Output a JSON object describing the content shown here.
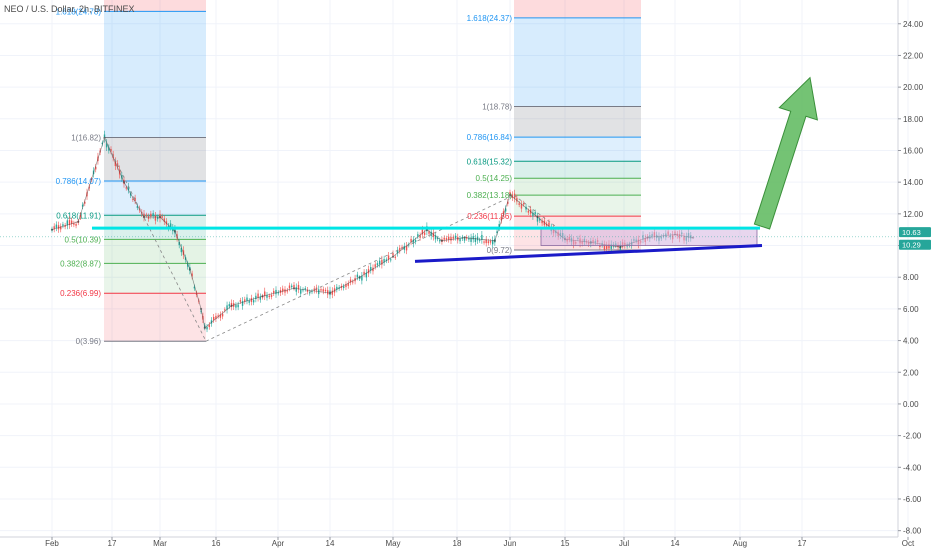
{
  "header": {
    "title": "NEO / U.S. Dollar, 2h, BITFINEX"
  },
  "price_badges": {
    "current": "10.63",
    "lower": "10.29"
  },
  "colors": {
    "candle_up": "#26a69a",
    "candle_down": "#ef5350",
    "fib_blue": "#2196f3",
    "fib_red": "#f23645",
    "fib_green": "#4caf50",
    "fib_teal": "#089981",
    "fib_gray": "#787b86",
    "cyan_line": "#00e5e5",
    "blue_line": "#1a1ac8",
    "rect_fill": "#d6b4e0",
    "arrow": "#5cb85c",
    "badge": "#26a69a"
  },
  "chart_data": {
    "type": "line",
    "title": "NEO / U.S. Dollar, 2h, BITFINEX",
    "xlabel": "",
    "ylabel": "",
    "ylim": [
      -8,
      25
    ],
    "y_ticks": [
      "24.00",
      "22.00",
      "20.00",
      "18.00",
      "16.00",
      "14.00",
      "12.00",
      "10.00",
      "8.00",
      "6.00",
      "4.00",
      "2.00",
      "0.00",
      "-2.00",
      "-4.00",
      "-6.00",
      "-8.00"
    ],
    "x_ticks": [
      "Feb",
      "17",
      "Mar",
      "16",
      "Apr",
      "14",
      "May",
      "18",
      "Jun",
      "15",
      "Jul",
      "14",
      "Aug",
      "17",
      "Oct"
    ],
    "series": [
      {
        "x": [
          "Feb 1",
          "Feb 8",
          "Feb 15",
          "Feb 20",
          "Feb 25",
          "Mar 1",
          "Mar 5",
          "Mar 9",
          "Mar 12",
          "Mar 13",
          "Mar 20",
          "Mar 28",
          "Apr 5",
          "Apr 14",
          "Apr 22",
          "May 1",
          "May 10",
          "May 14",
          "May 20",
          "May 28",
          "Jun 1",
          "Jun 8",
          "Jun 15",
          "Jun 22",
          "Jun 30",
          "Jul 7",
          "Jul 14",
          "Jul 19"
        ],
        "values": [
          11.0,
          11.5,
          16.8,
          14.0,
          11.8,
          11.8,
          10.9,
          8.5,
          6.0,
          4.8,
          6.2,
          6.8,
          7.3,
          7.0,
          8.0,
          9.3,
          11.0,
          10.3,
          10.5,
          10.3,
          13.2,
          11.8,
          10.4,
          10.2,
          9.9,
          10.5,
          10.7,
          10.5
        ]
      }
    ],
    "fib_left": {
      "levels": [
        {
          "label": "1.618(24.78)",
          "value": 24.78
        },
        {
          "label": "1(16.82)",
          "value": 16.82
        },
        {
          "label": "0.786(14.07)",
          "value": 14.07
        },
        {
          "label": "0.618(11.91)",
          "value": 11.91
        },
        {
          "label": "0.5(10.39)",
          "value": 10.39
        },
        {
          "label": "0.382(8.87)",
          "value": 8.87
        },
        {
          "label": "0.236(6.99)",
          "value": 6.99
        },
        {
          "label": "0(3.96)",
          "value": 3.96
        }
      ]
    },
    "fib_right": {
      "levels": [
        {
          "label": "1.618(24.37)",
          "value": 24.37
        },
        {
          "label": "1(18.78)",
          "value": 18.78
        },
        {
          "label": "0.786(16.84)",
          "value": 16.84
        },
        {
          "label": "0.618(15.32)",
          "value": 15.32
        },
        {
          "label": "0.5(14.25)",
          "value": 14.25
        },
        {
          "label": "0.382(13.18)",
          "value": 13.18
        },
        {
          "label": "0.236(11.86)",
          "value": 11.86
        },
        {
          "label": "0(9.72)",
          "value": 9.72
        }
      ]
    },
    "annotations": {
      "resistance_line": 11.1,
      "support_line": [
        9.0,
        10.0
      ],
      "range_box": [
        10.0,
        11.1
      ],
      "arrow_target": 20.6
    }
  }
}
